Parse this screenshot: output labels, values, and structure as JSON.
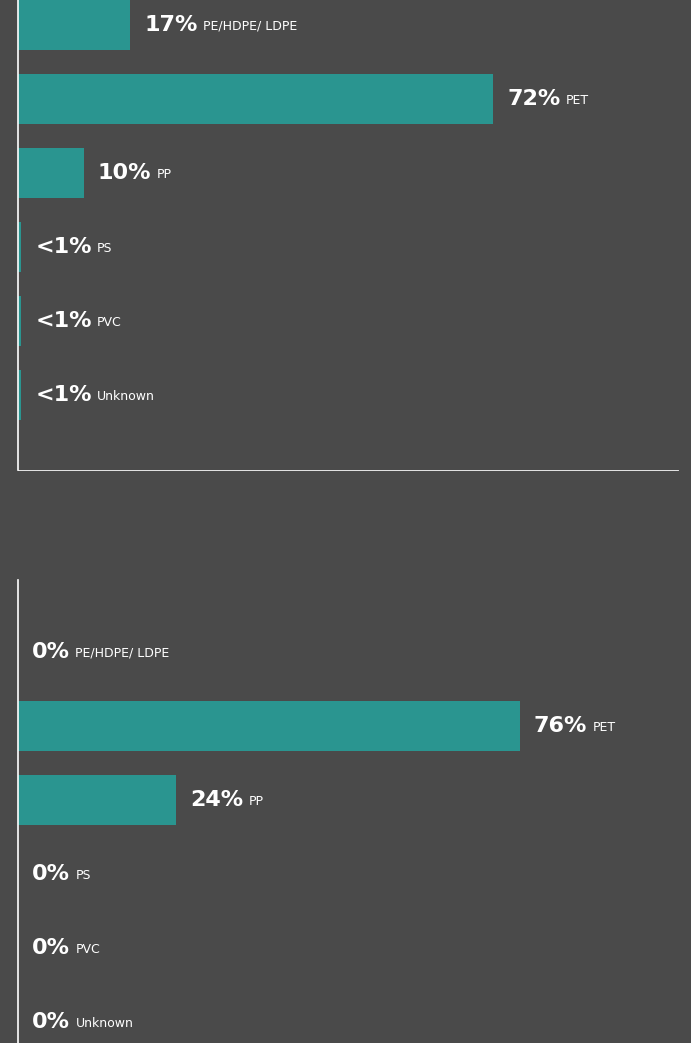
{
  "chart_data": [
    {
      "type": "bar",
      "orientation": "horizontal",
      "categories": [
        "PE/HDPE/ LDPE",
        "PET",
        "PP",
        "PS",
        "PVC",
        "Unknown"
      ],
      "values": [
        17,
        72,
        10,
        0.5,
        0.5,
        0.5
      ],
      "value_labels": [
        "17%",
        "72%",
        "10%",
        "<1%",
        "<1%",
        "<1%"
      ],
      "color": "#2a9590",
      "xlim": [
        0,
        100
      ],
      "xticks": [],
      "data_labels": true,
      "tick_labels": false,
      "grid": false
    },
    {
      "type": "bar",
      "orientation": "horizontal",
      "categories": [
        "PE/HDPE/ LDPE",
        "PET",
        "PP",
        "PS",
        "PVC",
        "Unknown"
      ],
      "values": [
        0,
        76,
        24,
        0,
        0,
        0
      ],
      "value_labels": [
        "0%",
        "76%",
        "24%",
        "0%",
        "0%",
        "0%"
      ],
      "color": "#2a9590",
      "xlim": [
        0,
        100
      ],
      "xticks": [],
      "data_labels": true,
      "tick_labels": false,
      "grid": false
    }
  ]
}
